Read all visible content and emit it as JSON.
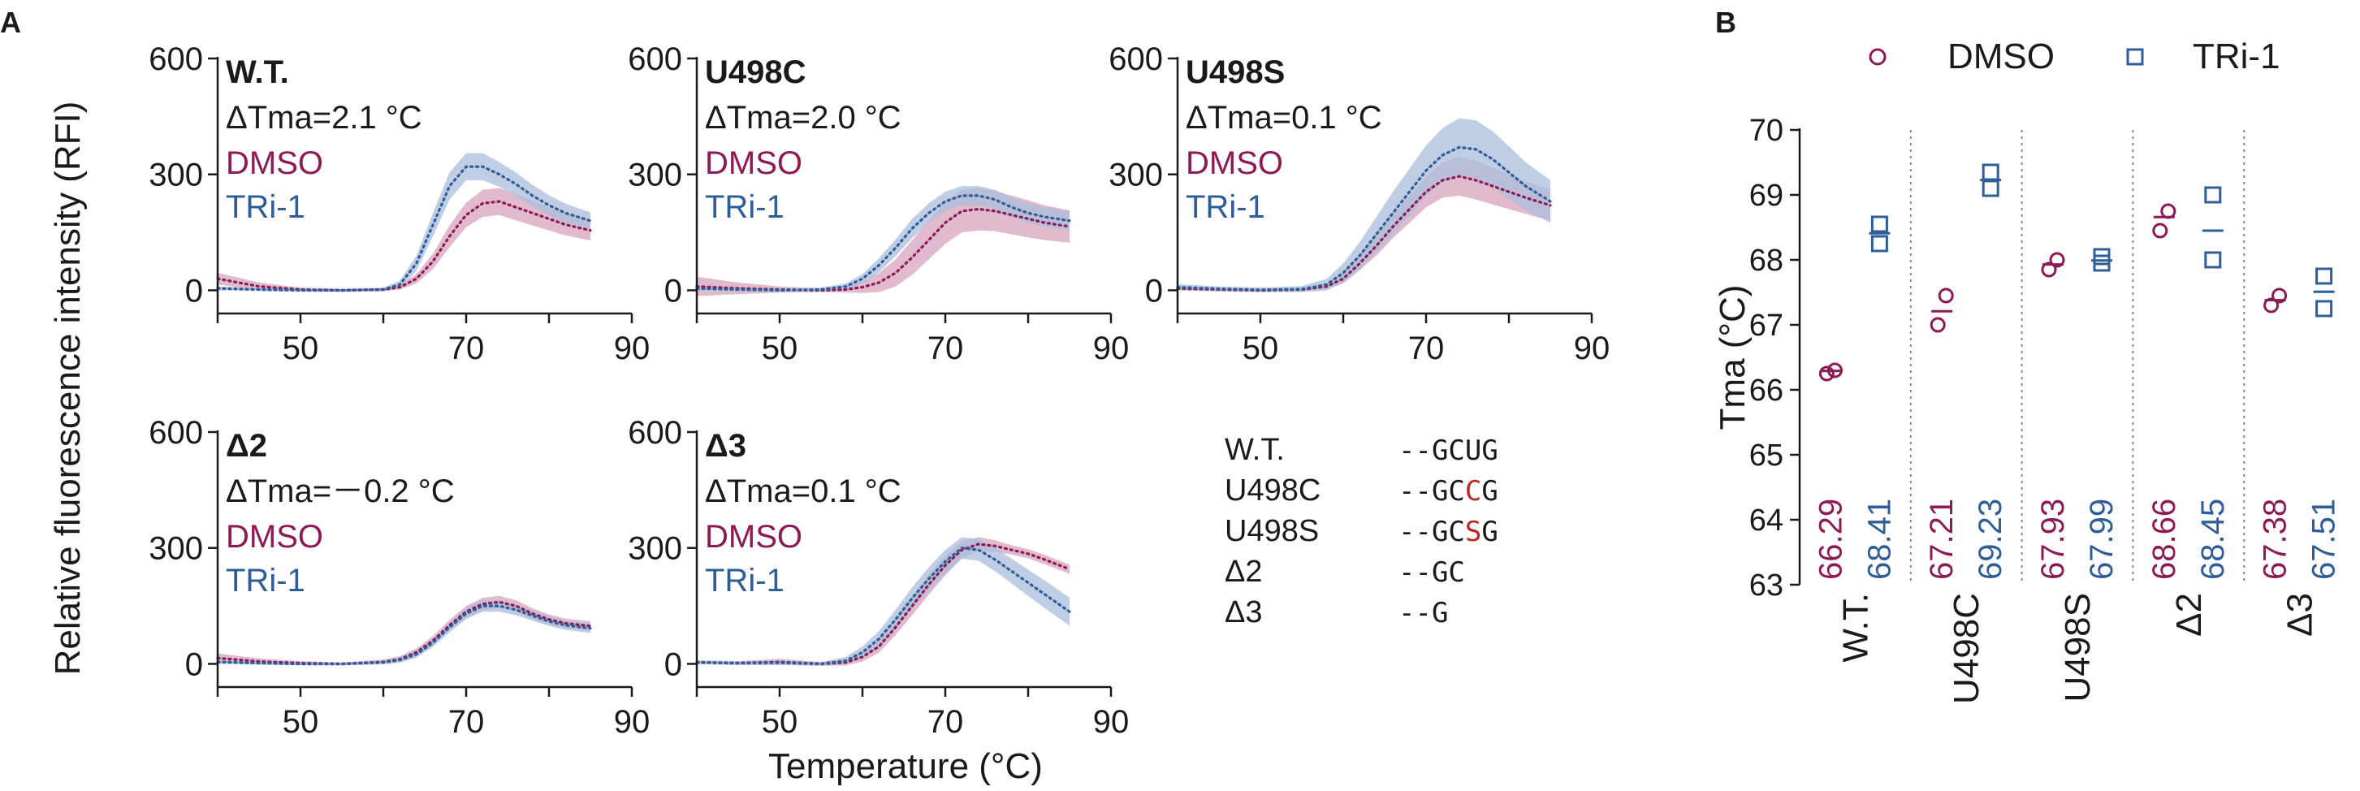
{
  "colors": {
    "dmso": "#8b1a55",
    "tri1": "#2f5d98",
    "dmso_band": "#d9a9c2",
    "tri1_band": "#a9bedb",
    "axis": "#1a1a1a",
    "divider": "#888888",
    "highlight": "#c0261f"
  },
  "figure": {
    "panel_a_label": "A",
    "panel_b_label": "B",
    "y_axis_title": "Relative fluorescence intensity (RFI)",
    "x_axis_title": "Temperature (°C)"
  },
  "chart_data": [
    {
      "id": "wt",
      "type": "line",
      "title": "W.T.",
      "annotation": "ΔTma=2.1 °C",
      "legend": [
        "DMSO",
        "TRi-1"
      ],
      "xlim": [
        40,
        90
      ],
      "ylim": [
        -60,
        600
      ],
      "xticks": [
        "50",
        "70",
        "90"
      ],
      "yticks": [
        "0",
        "300",
        "600"
      ],
      "series": [
        {
          "name": "DMSO",
          "x": [
            40,
            45,
            50,
            55,
            60,
            62,
            64,
            66,
            68,
            70,
            72,
            74,
            76,
            78,
            80,
            82,
            85
          ],
          "y": [
            30,
            10,
            2,
            0,
            2,
            8,
            30,
            75,
            140,
            195,
            225,
            230,
            215,
            200,
            185,
            170,
            155
          ],
          "err": [
            15,
            10,
            5,
            4,
            4,
            6,
            12,
            20,
            28,
            32,
            35,
            35,
            34,
            32,
            30,
            28,
            26
          ]
        },
        {
          "name": "TRi-1",
          "x": [
            40,
            45,
            50,
            55,
            60,
            62,
            64,
            66,
            68,
            70,
            72,
            74,
            76,
            78,
            80,
            82,
            85
          ],
          "y": [
            5,
            2,
            0,
            0,
            2,
            15,
            70,
            170,
            270,
            320,
            320,
            300,
            275,
            245,
            220,
            200,
            180
          ],
          "err": [
            5,
            4,
            4,
            4,
            5,
            10,
            20,
            30,
            35,
            35,
            35,
            32,
            30,
            28,
            26,
            24,
            22
          ]
        }
      ]
    },
    {
      "id": "u498c",
      "type": "line",
      "title": "U498C",
      "annotation": "ΔTma=2.0 °C",
      "legend": [
        "DMSO",
        "TRi-1"
      ],
      "xlim": [
        40,
        90
      ],
      "ylim": [
        -60,
        600
      ],
      "xticks": [
        "50",
        "70",
        "90"
      ],
      "yticks": [
        "0",
        "300",
        "600"
      ],
      "series": [
        {
          "name": "DMSO",
          "x": [
            40,
            45,
            50,
            55,
            58,
            60,
            62,
            64,
            66,
            68,
            70,
            72,
            74,
            76,
            78,
            80,
            82,
            85
          ],
          "y": [
            10,
            5,
            2,
            0,
            2,
            8,
            20,
            45,
            85,
            130,
            175,
            205,
            210,
            205,
            195,
            185,
            175,
            165
          ],
          "err": [
            25,
            15,
            8,
            5,
            8,
            15,
            25,
            35,
            45,
            50,
            55,
            55,
            55,
            52,
            50,
            48,
            45,
            42
          ]
        },
        {
          "name": "TRi-1",
          "x": [
            40,
            45,
            50,
            55,
            58,
            60,
            62,
            64,
            66,
            68,
            70,
            72,
            74,
            76,
            78,
            80,
            82,
            85
          ],
          "y": [
            5,
            2,
            0,
            2,
            10,
            30,
            65,
            110,
            160,
            200,
            230,
            245,
            245,
            235,
            215,
            200,
            190,
            180
          ],
          "err": [
            5,
            5,
            5,
            5,
            8,
            12,
            18,
            22,
            25,
            25,
            25,
            25,
            25,
            25,
            25,
            25,
            25,
            25
          ]
        }
      ]
    },
    {
      "id": "u498s",
      "type": "line",
      "title": "U498S",
      "annotation": "ΔTma=0.1 °C",
      "legend": [
        "DMSO",
        "TRi-1"
      ],
      "xlim": [
        40,
        90
      ],
      "ylim": [
        -60,
        600
      ],
      "xticks": [
        "50",
        "70",
        "90"
      ],
      "yticks": [
        "0",
        "300",
        "600"
      ],
      "series": [
        {
          "name": "DMSO",
          "x": [
            40,
            45,
            50,
            55,
            58,
            60,
            62,
            64,
            66,
            68,
            70,
            72,
            74,
            76,
            78,
            80,
            82,
            85
          ],
          "y": [
            5,
            2,
            0,
            2,
            10,
            30,
            70,
            115,
            165,
            210,
            255,
            285,
            295,
            285,
            270,
            255,
            240,
            220
          ],
          "err": [
            5,
            5,
            5,
            5,
            8,
            12,
            18,
            25,
            30,
            35,
            40,
            45,
            50,
            50,
            48,
            45,
            42,
            40
          ]
        },
        {
          "name": "TRi-1",
          "x": [
            40,
            45,
            50,
            55,
            58,
            60,
            62,
            64,
            66,
            68,
            70,
            72,
            74,
            76,
            78,
            80,
            82,
            85
          ],
          "y": [
            8,
            4,
            1,
            3,
            15,
            45,
            90,
            145,
            200,
            255,
            310,
            350,
            370,
            365,
            340,
            305,
            270,
            230
          ],
          "err": [
            8,
            6,
            6,
            8,
            15,
            25,
            35,
            45,
            55,
            60,
            65,
            70,
            75,
            75,
            72,
            68,
            62,
            55
          ]
        }
      ]
    },
    {
      "id": "d2",
      "type": "line",
      "title": "Δ2",
      "annotation": "ΔTma=－0.2 °C",
      "legend": [
        "DMSO",
        "TRi-1"
      ],
      "xlim": [
        40,
        90
      ],
      "ylim": [
        -60,
        600
      ],
      "xticks": [
        "50",
        "70",
        "90"
      ],
      "yticks": [
        "0",
        "300",
        "600"
      ],
      "series": [
        {
          "name": "DMSO",
          "x": [
            40,
            45,
            50,
            55,
            60,
            62,
            64,
            66,
            68,
            70,
            72,
            74,
            76,
            78,
            80,
            82,
            85
          ],
          "y": [
            15,
            6,
            2,
            0,
            5,
            12,
            30,
            60,
            100,
            135,
            155,
            160,
            150,
            130,
            115,
            105,
            98
          ],
          "err": [
            12,
            8,
            5,
            4,
            6,
            8,
            10,
            12,
            14,
            15,
            16,
            16,
            15,
            14,
            13,
            12,
            12
          ]
        },
        {
          "name": "TRi-1",
          "x": [
            40,
            45,
            50,
            55,
            60,
            62,
            64,
            66,
            68,
            70,
            72,
            74,
            76,
            78,
            80,
            82,
            85
          ],
          "y": [
            5,
            2,
            0,
            0,
            4,
            10,
            25,
            55,
            95,
            130,
            150,
            150,
            140,
            125,
            110,
            100,
            92
          ],
          "err": [
            5,
            4,
            4,
            4,
            5,
            7,
            9,
            11,
            13,
            14,
            15,
            15,
            14,
            13,
            12,
            12,
            12
          ]
        }
      ]
    },
    {
      "id": "d3",
      "type": "line",
      "title": "Δ3",
      "annotation": "ΔTma=0.1 °C",
      "legend": [
        "DMSO",
        "TRi-1"
      ],
      "xlim": [
        40,
        90
      ],
      "ylim": [
        -60,
        600
      ],
      "xticks": [
        "50",
        "70",
        "90"
      ],
      "yticks": [
        "0",
        "300",
        "600"
      ],
      "series": [
        {
          "name": "DMSO",
          "x": [
            40,
            45,
            50,
            55,
            58,
            60,
            62,
            64,
            66,
            68,
            70,
            72,
            74,
            76,
            78,
            80,
            82,
            85
          ],
          "y": [
            4,
            2,
            5,
            0,
            4,
            18,
            45,
            95,
            150,
            205,
            255,
            295,
            310,
            305,
            295,
            285,
            270,
            245
          ],
          "err": [
            5,
            5,
            8,
            5,
            8,
            12,
            16,
            20,
            24,
            26,
            26,
            22,
            18,
            15,
            12,
            12,
            12,
            12
          ]
        },
        {
          "name": "TRi-1",
          "x": [
            40,
            45,
            50,
            55,
            58,
            60,
            62,
            64,
            66,
            68,
            70,
            72,
            74,
            76,
            78,
            80,
            82,
            85
          ],
          "y": [
            4,
            2,
            3,
            0,
            8,
            30,
            65,
            115,
            170,
            220,
            265,
            300,
            295,
            270,
            240,
            210,
            180,
            135
          ],
          "err": [
            5,
            5,
            6,
            5,
            10,
            15,
            20,
            25,
            28,
            30,
            30,
            28,
            28,
            30,
            32,
            34,
            36,
            36
          ]
        }
      ]
    },
    {
      "id": "tma",
      "type": "scatter",
      "ylabel": "Tma (°C)",
      "ylim": [
        63,
        70
      ],
      "yticks": [
        "63",
        "64",
        "65",
        "66",
        "67",
        "68",
        "69",
        "70"
      ],
      "categories": [
        "W.T.",
        "U498C",
        "U498S",
        "Δ2",
        "Δ3"
      ],
      "legend": [
        "DMSO",
        "TRi-1"
      ],
      "series": [
        {
          "name": "DMSO",
          "points": [
            [
              66.25,
              66.3
            ],
            [
              67.0,
              67.45
            ],
            [
              67.85,
              68.0
            ],
            [
              68.45,
              68.75
            ],
            [
              67.3,
              67.45
            ]
          ],
          "means": [
            "66.29",
            "67.21",
            "67.93",
            "68.66",
            "67.38"
          ],
          "mean_values": [
            66.29,
            67.21,
            67.93,
            68.66,
            67.38
          ]
        },
        {
          "name": "TRi-1",
          "points": [
            [
              68.25,
              68.55
            ],
            [
              69.1,
              69.35
            ],
            [
              67.95,
              68.05
            ],
            [
              68.0,
              69.0
            ],
            [
              67.25,
              67.75
            ]
          ],
          "means": [
            "68.41",
            "69.23",
            "67.99",
            "68.45",
            "67.51"
          ],
          "mean_values": [
            68.41,
            69.23,
            67.99,
            68.45,
            67.51
          ]
        }
      ]
    }
  ],
  "sequence_legend": [
    {
      "name": "W.T.",
      "prefix": "--GC",
      "highlight": "",
      "suffix": "UG"
    },
    {
      "name": "U498C",
      "prefix": "--GC",
      "highlight": "C",
      "suffix": "G"
    },
    {
      "name": "U498S",
      "prefix": "--GC",
      "highlight": "S",
      "suffix": "G"
    },
    {
      "name": "Δ2",
      "prefix": "--GC",
      "highlight": "",
      "suffix": ""
    },
    {
      "name": "Δ3",
      "prefix": "--G",
      "highlight": "",
      "suffix": ""
    }
  ]
}
